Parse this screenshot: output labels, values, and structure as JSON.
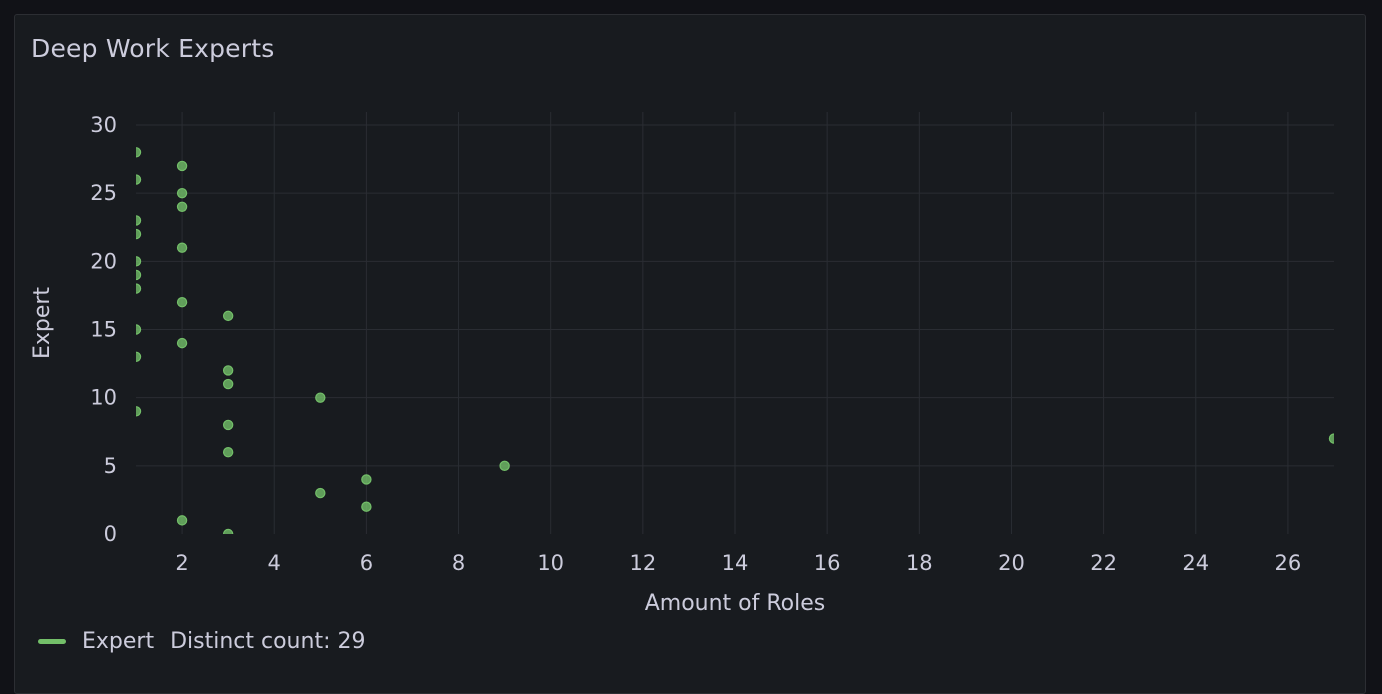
{
  "panel": {
    "title": "Deep Work Experts"
  },
  "legend": {
    "series_name": "Expert",
    "stat_label": "Distinct count: 29"
  },
  "colors": {
    "series": "#73bf69",
    "grid": "#2a2d33",
    "text": "#ccccdc"
  },
  "chart_data": {
    "type": "scatter",
    "title": "Deep Work Experts",
    "xlabel": "Amount of Roles",
    "ylabel": "Expert",
    "xlim": [
      1,
      27
    ],
    "ylim": [
      0,
      30
    ],
    "x_ticks": [
      "2",
      "4",
      "6",
      "8",
      "10",
      "12",
      "14",
      "16",
      "18",
      "20",
      "22",
      "24",
      "26"
    ],
    "y_ticks": [
      "0",
      "5",
      "10",
      "15",
      "20",
      "25",
      "30"
    ],
    "grid": true,
    "legend_position": "bottom-left",
    "series": [
      {
        "name": "Expert",
        "points": [
          {
            "x": 1,
            "y": 28
          },
          {
            "x": 1,
            "y": 26
          },
          {
            "x": 1,
            "y": 23
          },
          {
            "x": 1,
            "y": 22
          },
          {
            "x": 1,
            "y": 20
          },
          {
            "x": 1,
            "y": 19
          },
          {
            "x": 1,
            "y": 18
          },
          {
            "x": 1,
            "y": 15
          },
          {
            "x": 1,
            "y": 13
          },
          {
            "x": 1,
            "y": 9
          },
          {
            "x": 2,
            "y": 27
          },
          {
            "x": 2,
            "y": 25
          },
          {
            "x": 2,
            "y": 24
          },
          {
            "x": 2,
            "y": 21
          },
          {
            "x": 2,
            "y": 17
          },
          {
            "x": 2,
            "y": 14
          },
          {
            "x": 2,
            "y": 1
          },
          {
            "x": 3,
            "y": 16
          },
          {
            "x": 3,
            "y": 12
          },
          {
            "x": 3,
            "y": 11
          },
          {
            "x": 3,
            "y": 8
          },
          {
            "x": 3,
            "y": 6
          },
          {
            "x": 3,
            "y": 0
          },
          {
            "x": 5,
            "y": 10
          },
          {
            "x": 5,
            "y": 3
          },
          {
            "x": 6,
            "y": 4
          },
          {
            "x": 6,
            "y": 2
          },
          {
            "x": 9,
            "y": 5
          },
          {
            "x": 27,
            "y": 7
          }
        ]
      }
    ]
  }
}
